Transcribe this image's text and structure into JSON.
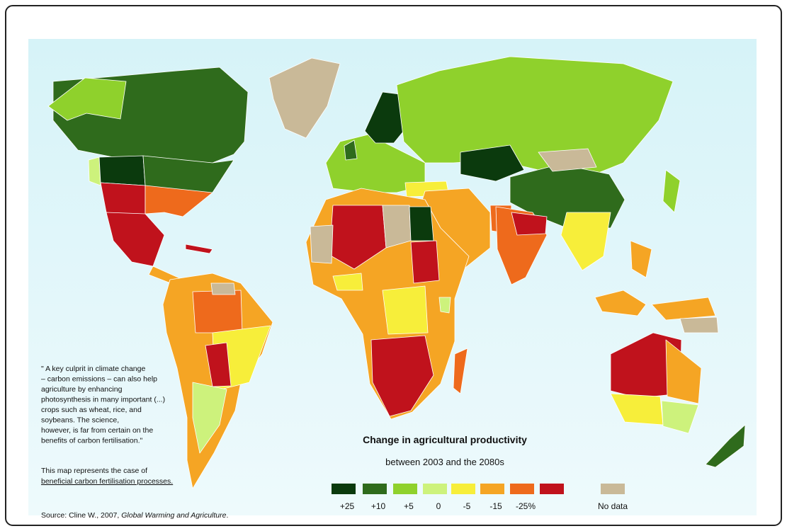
{
  "quote": {
    "lines": [
      "\" A key culprit in climate change",
      "– carbon emissions – can also help",
      "agriculture by enhancing",
      "photosynthesis in many important (...)",
      "crops such as wheat, rice, and",
      "soybeans. The science,",
      "however, is far from certain on the",
      "benefits of carbon fertilisation.\""
    ]
  },
  "note": {
    "lines": [
      "This map represents the case of",
      "beneficial carbon fertilisation processes."
    ]
  },
  "legend": {
    "title": "Change in agricultural productivity",
    "subtitle": "between 2003 and the 2080s",
    "items": [
      {
        "label": "+25",
        "color": "#0b3a0d"
      },
      {
        "label": "+10",
        "color": "#2f6b1c"
      },
      {
        "label": "+5",
        "color": "#8fd12c"
      },
      {
        "label": "0",
        "color": "#cdf27c"
      },
      {
        "label": "-5",
        "color": "#f7ee3a"
      },
      {
        "label": "-15",
        "color": "#f5a524"
      },
      {
        "label": "-25%",
        "color": "#ee6a1c"
      },
      {
        "label": "",
        "color": "#c0121c"
      }
    ],
    "no_data": {
      "label": "No data",
      "color": "#c9b998"
    }
  },
  "source": {
    "prefix": "Source: Cline W., 2007, ",
    "work": "Global Warming and Agriculture",
    "suffix": "."
  }
}
